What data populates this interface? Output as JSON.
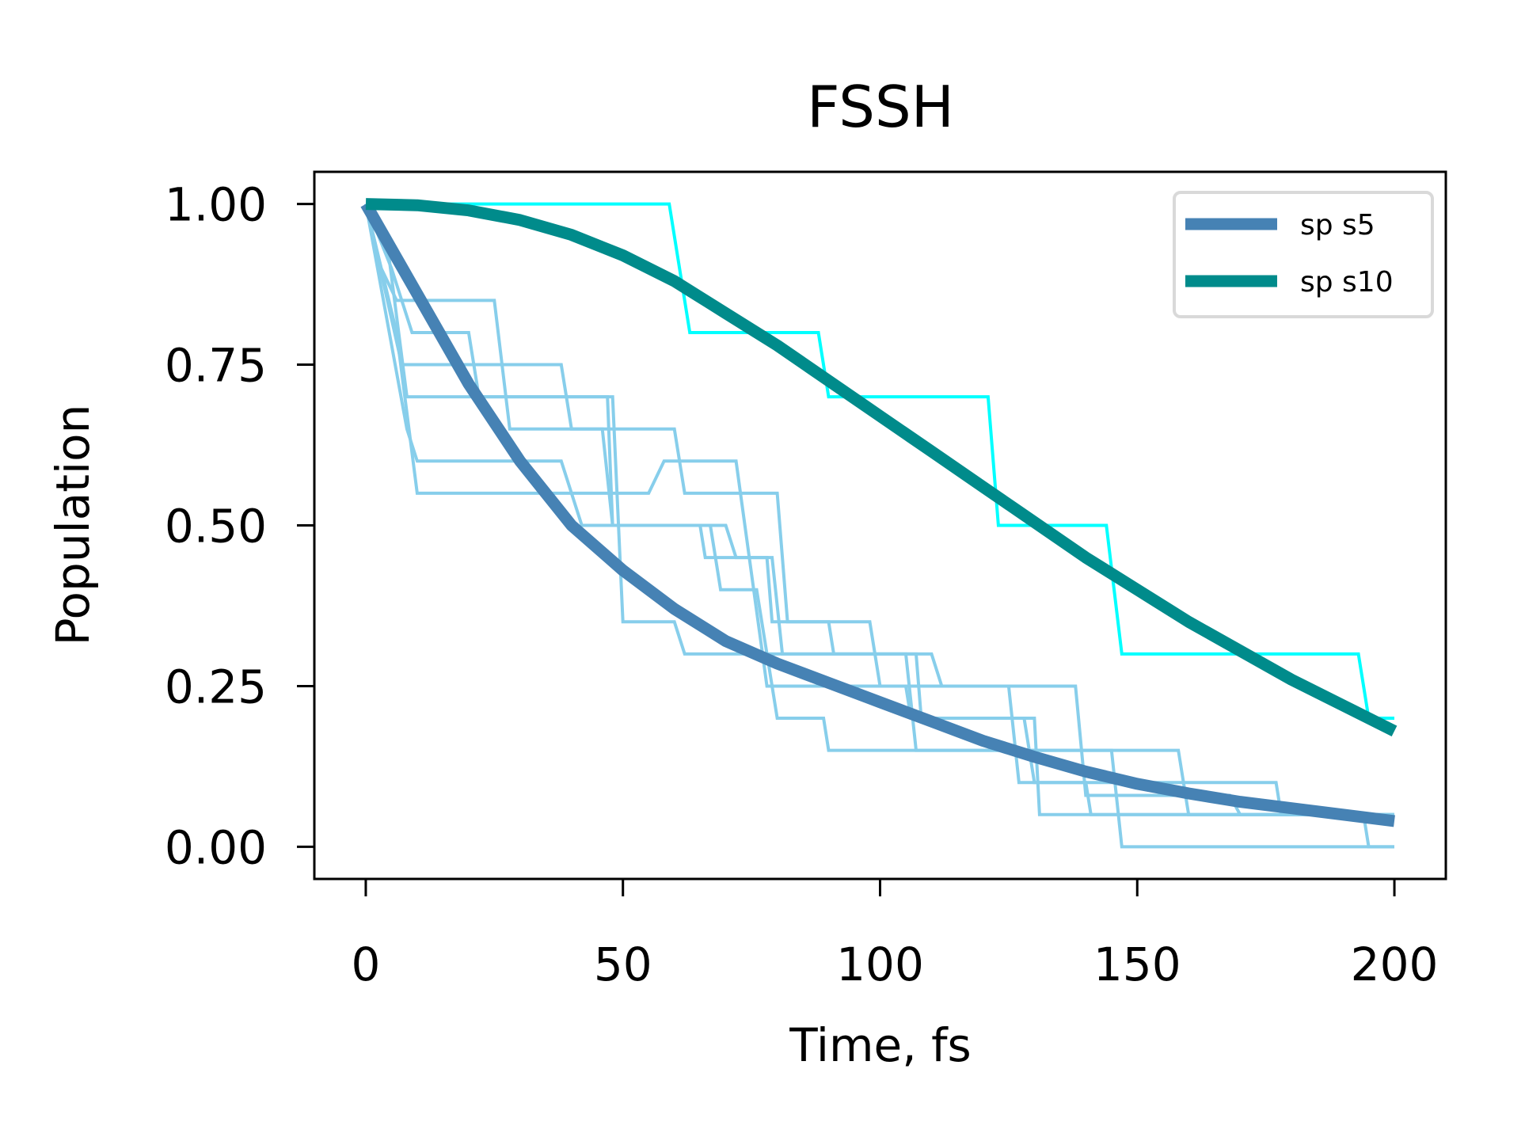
{
  "chart_data": {
    "type": "line",
    "title": "FSSH",
    "xlabel": "Time, fs",
    "ylabel": "Population",
    "xlim": [
      -10,
      210
    ],
    "ylim": [
      -0.05,
      1.05
    ],
    "xticks": [
      0,
      50,
      100,
      150,
      200
    ],
    "xtick_labels": [
      "0",
      "50",
      "100",
      "150",
      "200"
    ],
    "yticks": [
      0.0,
      0.25,
      0.5,
      0.75,
      1.0
    ],
    "ytick_labels": [
      "0.00",
      "0.25",
      "0.50",
      "0.75",
      "1.00"
    ],
    "grid": false,
    "legend_position": "top-right",
    "colors": {
      "sp_s5": "#4682b4",
      "sp_s10": "#008b8b",
      "s5_trajectories": "#87ceeb",
      "s10_trajectory": "#00ffff"
    },
    "series": [
      {
        "name": "sp s5",
        "x": [
          0,
          10,
          20,
          30,
          40,
          50,
          60,
          70,
          80,
          90,
          100,
          110,
          120,
          130,
          140,
          150,
          160,
          170,
          180,
          190,
          200
        ],
        "values": [
          1.0,
          0.86,
          0.72,
          0.6,
          0.5,
          0.43,
          0.37,
          0.32,
          0.285,
          0.255,
          0.225,
          0.195,
          0.165,
          0.14,
          0.117,
          0.098,
          0.083,
          0.07,
          0.06,
          0.05,
          0.04
        ]
      },
      {
        "name": "sp s10",
        "x": [
          0,
          10,
          20,
          30,
          40,
          50,
          60,
          70,
          80,
          90,
          100,
          110,
          120,
          130,
          140,
          150,
          160,
          170,
          180,
          190,
          200
        ],
        "values": [
          1.0,
          0.998,
          0.99,
          0.975,
          0.952,
          0.92,
          0.88,
          0.83,
          0.78,
          0.725,
          0.67,
          0.615,
          0.56,
          0.505,
          0.45,
          0.4,
          0.35,
          0.305,
          0.26,
          0.22,
          0.18
        ]
      }
    ],
    "trajectories": [
      {
        "group": "s10",
        "x": [
          0,
          59,
          63,
          88,
          90,
          121,
          123,
          144,
          147,
          193,
          195,
          200
        ],
        "values": [
          1.0,
          1.0,
          0.8,
          0.8,
          0.7,
          0.7,
          0.5,
          0.5,
          0.3,
          0.3,
          0.2,
          0.2
        ]
      },
      {
        "group": "s5",
        "x": [
          0,
          3,
          6,
          9,
          25,
          28,
          46,
          48,
          65,
          66,
          78,
          79,
          90,
          91,
          107,
          108,
          130,
          131,
          200
        ],
        "values": [
          1.0,
          0.9,
          0.85,
          0.85,
          0.85,
          0.65,
          0.65,
          0.5,
          0.5,
          0.45,
          0.45,
          0.35,
          0.35,
          0.3,
          0.3,
          0.2,
          0.2,
          0.05,
          0.05
        ]
      },
      {
        "group": "s5",
        "x": [
          0,
          7,
          8,
          38,
          40,
          60,
          62,
          80,
          82,
          98,
          100,
          125,
          127,
          140,
          141,
          200
        ],
        "values": [
          1.0,
          0.75,
          0.75,
          0.75,
          0.65,
          0.65,
          0.55,
          0.55,
          0.35,
          0.35,
          0.25,
          0.25,
          0.1,
          0.1,
          0.05,
          0.05
        ]
      },
      {
        "group": "s5",
        "x": [
          0,
          4,
          8,
          47,
          48,
          70,
          72,
          79,
          81,
          105,
          107,
          145,
          147,
          200
        ],
        "values": [
          1.0,
          0.95,
          0.7,
          0.7,
          0.5,
          0.5,
          0.45,
          0.45,
          0.3,
          0.3,
          0.15,
          0.15,
          0.0,
          0.0
        ]
      },
      {
        "group": "s5",
        "x": [
          0,
          6,
          10,
          40,
          42,
          67,
          69,
          76,
          80,
          89,
          90,
          117,
          118,
          158,
          160,
          200
        ],
        "values": [
          1.0,
          0.8,
          0.55,
          0.55,
          0.5,
          0.5,
          0.4,
          0.4,
          0.2,
          0.2,
          0.15,
          0.15,
          0.15,
          0.15,
          0.05,
          0.05
        ]
      },
      {
        "group": "s5",
        "x": [
          0,
          8,
          10,
          38,
          40,
          55,
          58,
          72,
          78,
          105,
          106,
          128,
          130,
          177,
          178,
          200
        ],
        "values": [
          1.0,
          0.65,
          0.6,
          0.6,
          0.55,
          0.55,
          0.6,
          0.6,
          0.25,
          0.25,
          0.2,
          0.2,
          0.1,
          0.1,
          0.05,
          0.05
        ]
      },
      {
        "group": "s5",
        "x": [
          0,
          5,
          9,
          20,
          22,
          48,
          50,
          60,
          62,
          80,
          84,
          110,
          112,
          138,
          140,
          168,
          170,
          194,
          195,
          200
        ],
        "values": [
          1.0,
          0.9,
          0.8,
          0.8,
          0.7,
          0.7,
          0.35,
          0.35,
          0.3,
          0.3,
          0.3,
          0.3,
          0.25,
          0.25,
          0.08,
          0.08,
          0.05,
          0.05,
          0.0,
          0.0
        ]
      }
    ]
  }
}
